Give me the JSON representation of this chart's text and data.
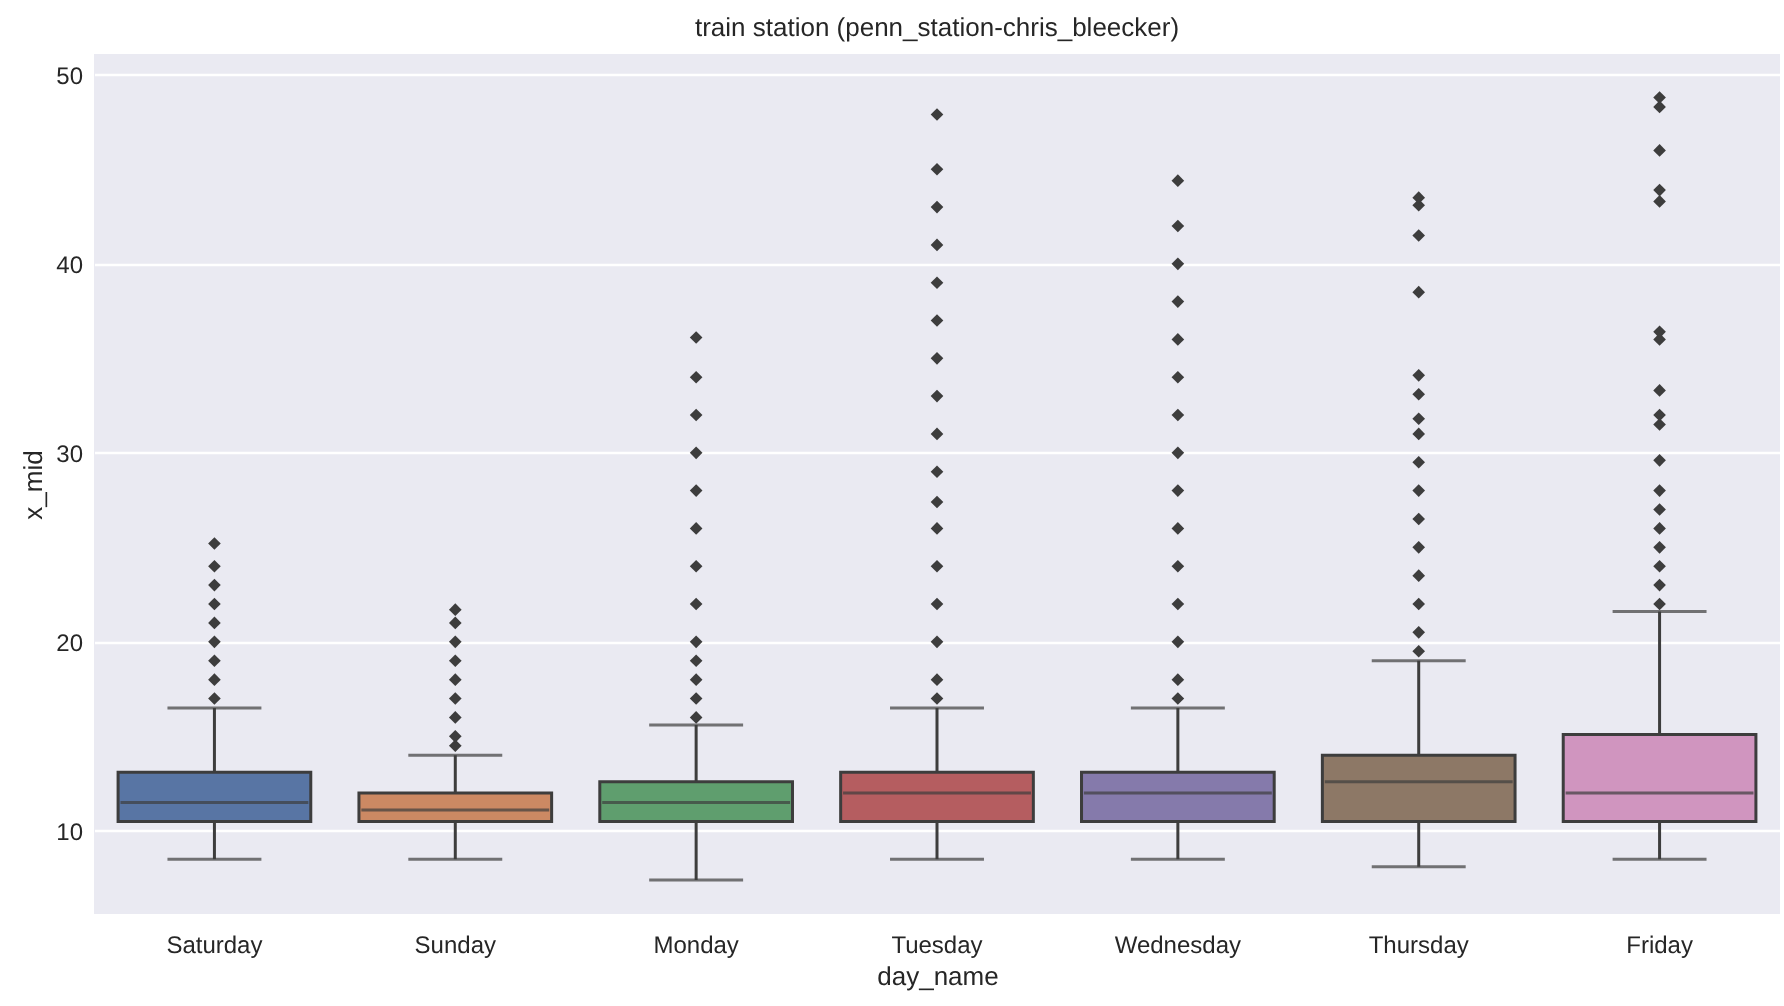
{
  "chart_data": {
    "type": "box",
    "title": "train station (penn_station-chris_bleecker)",
    "xlabel": "day_name",
    "ylabel": "x_mid",
    "categories": [
      "Saturday",
      "Sunday",
      "Monday",
      "Tuesday",
      "Wednesday",
      "Thursday",
      "Friday"
    ],
    "colors": [
      "#5875a4",
      "#cc8963",
      "#5f9e6e",
      "#b55d60",
      "#857aab",
      "#8d7866",
      "#d095bf"
    ],
    "boxes": [
      {
        "low": 8.5,
        "q1": 10.5,
        "median": 11.5,
        "q3": 13.1,
        "high": 16.5,
        "outliers": [
          17,
          18,
          19,
          20,
          21,
          22,
          23,
          24,
          25.2
        ]
      },
      {
        "low": 8.5,
        "q1": 10.5,
        "median": 11.1,
        "q3": 12,
        "high": 14,
        "outliers": [
          14.5,
          15,
          16,
          17,
          18,
          19,
          20,
          21,
          21.7
        ]
      },
      {
        "low": 7.4,
        "q1": 10.5,
        "median": 11.5,
        "q3": 12.6,
        "high": 15.6,
        "outliers": [
          16,
          17,
          18,
          19,
          20,
          22,
          24,
          26,
          28,
          30,
          32,
          34,
          36.1
        ]
      },
      {
        "low": 8.5,
        "q1": 10.5,
        "median": 12,
        "q3": 13.1,
        "high": 16.5,
        "outliers": [
          17,
          18,
          20,
          22,
          24,
          26,
          27.4,
          29,
          31,
          33,
          35,
          37,
          39,
          41,
          43,
          45,
          47.9
        ]
      },
      {
        "low": 8.5,
        "q1": 10.5,
        "median": 12,
        "q3": 13.1,
        "high": 16.5,
        "outliers": [
          17,
          18,
          20,
          22,
          24,
          26,
          28,
          30,
          32,
          34,
          36,
          38,
          40,
          42,
          44.4
        ]
      },
      {
        "low": 8.1,
        "q1": 10.5,
        "median": 12.6,
        "q3": 14,
        "high": 19,
        "outliers": [
          19.5,
          20.5,
          22,
          23.5,
          25,
          26.5,
          28,
          29.5,
          31,
          31.8,
          33.1,
          34.1,
          38.5,
          41.5,
          43.1,
          43.5
        ]
      },
      {
        "low": 8.5,
        "q1": 10.5,
        "median": 12,
        "q3": 15.1,
        "high": 21.6,
        "outliers": [
          22,
          23,
          24,
          25,
          26,
          27,
          28,
          29.6,
          31.5,
          32,
          33.3,
          36,
          36.4,
          43.3,
          43.9,
          46,
          48.3,
          48.8
        ]
      }
    ],
    "ylim": [
      5.6,
      51.1
    ],
    "yticks": [
      10,
      20,
      30,
      40,
      50
    ],
    "grid": "y",
    "marker": "diamond"
  }
}
